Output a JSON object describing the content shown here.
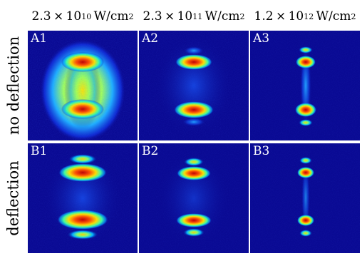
{
  "columns": [
    {
      "mantissa": "2.3",
      "times": "×",
      "base": "10",
      "exponent": "10",
      "unit": "W/cm",
      "unit_exp": "2"
    },
    {
      "mantissa": "2.3",
      "times": "×",
      "base": "10",
      "exponent": "11",
      "unit": "W/cm",
      "unit_exp": "2"
    },
    {
      "mantissa": "1.2",
      "times": "×",
      "base": "10",
      "exponent": "12",
      "unit": "W/cm",
      "unit_exp": "2"
    }
  ],
  "rows": [
    {
      "label": "no deflection"
    },
    {
      "label": "deflection"
    }
  ],
  "panels": {
    "a1": "A1",
    "a2": "A2",
    "a3": "A3",
    "b1": "B1",
    "b2": "B2",
    "b3": "B3"
  },
  "colors": {
    "background": "#0a0a93",
    "colormap": [
      "#0a0a93",
      "#0040ff",
      "#00c8ff",
      "#60ff90",
      "#ffff00",
      "#ff8000",
      "#d00000"
    ]
  }
}
